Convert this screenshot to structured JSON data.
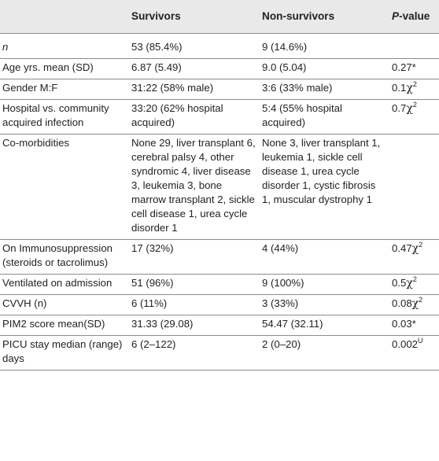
{
  "header": {
    "col1": "",
    "col2": "Survivors",
    "col3": "Non-survivors",
    "col4_italic": "P",
    "col4_rest": "-value"
  },
  "rows": [
    {
      "label": "n",
      "survivors": "53 (85.4%)",
      "nonsurvivors": "9 (14.6%)",
      "p": "",
      "p_mark": "",
      "p_sup": ""
    },
    {
      "label": "Age yrs. mean (SD)",
      "survivors": "6.87 (5.49)",
      "nonsurvivors": "9.0 (5.04)",
      "p": "0.27*",
      "p_mark": "",
      "p_sup": ""
    },
    {
      "label": "Gender M:F",
      "survivors": "31:22 (58% male)",
      "nonsurvivors": "3:6 (33% male)",
      "p": "0.1",
      "p_mark": "χ",
      "p_sup": "2"
    },
    {
      "label": "Hospital vs. community acquired infection",
      "survivors": "33:20 (62% hospital acquired)",
      "nonsurvivors": "5:4 (55% hospital acquired)",
      "p": "0.7",
      "p_mark": "χ",
      "p_sup": "2"
    },
    {
      "label": "Co-morbidities",
      "survivors": "None 29, liver transplant 6, cerebral palsy 4, other syndromic 4, liver disease 3, leukemia 3, bone marrow transplant 2, sickle cell disease 1, urea cycle disorder 1",
      "nonsurvivors": "None 3, liver transplant 1, leukemia 1, sickle cell disease 1, urea cycle disorder 1, cystic fibrosis 1, muscular dystrophy 1",
      "p": "",
      "p_mark": "",
      "p_sup": ""
    },
    {
      "label": "On Immunosuppression (steroids or tacrolimus)",
      "survivors": "17 (32%)",
      "nonsurvivors": "4 (44%)",
      "p": "0.47",
      "p_mark": "χ",
      "p_sup": "2"
    },
    {
      "label": "Ventilated on admission",
      "survivors": "51 (96%)",
      "nonsurvivors": "9 (100%)",
      "p": "0.5",
      "p_mark": "χ",
      "p_sup": "2"
    },
    {
      "label": "CVVH (n)",
      "survivors": "6 (11%)",
      "nonsurvivors": "3 (33%)",
      "p": "0.08",
      "p_mark": "χ",
      "p_sup": "2"
    },
    {
      "label": "PIM2 score mean(SD)",
      "survivors": "31.33 (29.08)",
      "nonsurvivors": "54.47 (32.11)",
      "p": "0.03*",
      "p_mark": "",
      "p_sup": ""
    },
    {
      "label": "PICU stay median (range) days",
      "survivors": "6 (2–122)",
      "nonsurvivors": "2 (0–20)",
      "p": "0.002",
      "p_mark": "",
      "p_sup": "U"
    }
  ]
}
